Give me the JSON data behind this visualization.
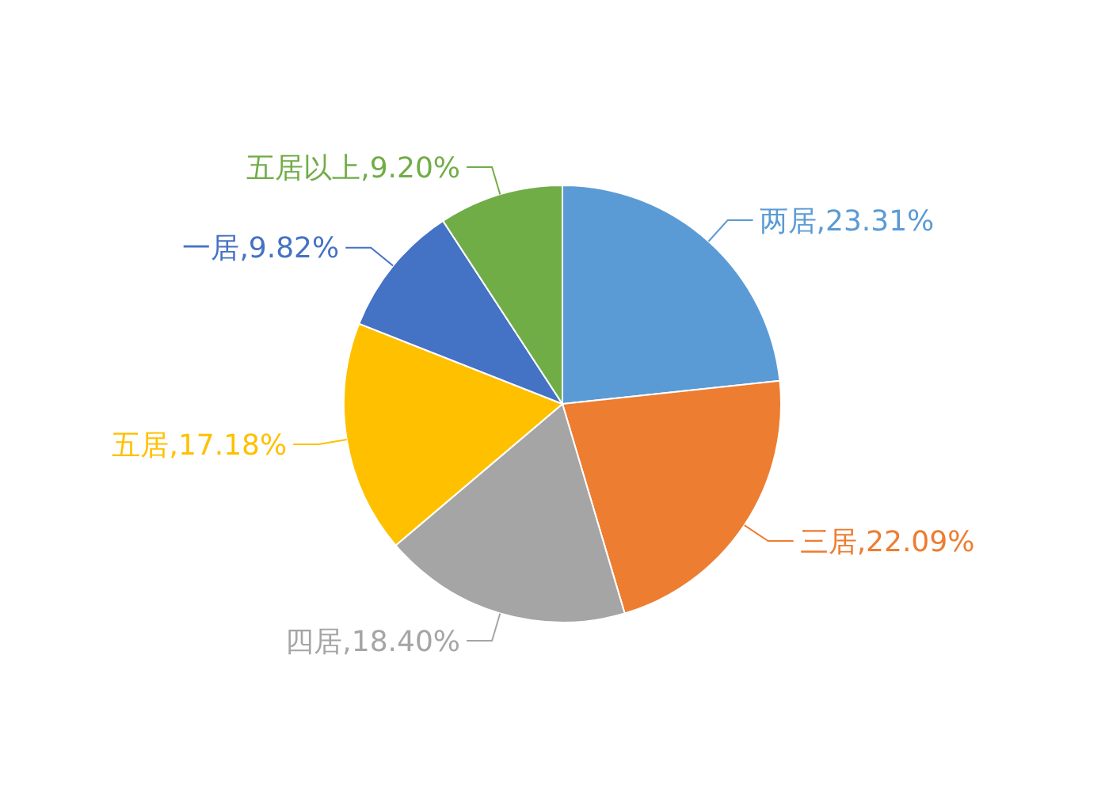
{
  "chart_data": {
    "type": "pie",
    "categories": [
      "两居",
      "三居",
      "四居",
      "五居",
      "一居",
      "五居以上"
    ],
    "values": [
      23.31,
      22.09,
      18.4,
      17.18,
      9.82,
      9.2
    ],
    "colors": [
      "#5b9bd5",
      "#ed7d31",
      "#a5a5a5",
      "#ffc000",
      "#4472c4",
      "#70ad47"
    ],
    "value_labels": [
      ",23.31%",
      ",22.09%",
      ",18.40%",
      ",17.18%",
      ",9.82%",
      ",9.20%"
    ],
    "legend": false
  }
}
